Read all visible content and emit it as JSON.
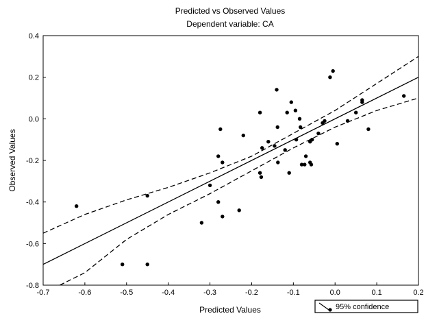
{
  "chart_data": {
    "type": "scatter",
    "title": "Predicted vs  Observed Values",
    "subtitle": "Dependent variable: CA",
    "xlabel": "Predicted Values",
    "ylabel": "Observed Values",
    "xlim": [
      -0.7,
      0.2
    ],
    "ylim": [
      -0.8,
      0.4
    ],
    "xticks": [
      "-0.7",
      "-0.6",
      "-0.5",
      "-0.4",
      "-0.3",
      "-0.2",
      "-0.1",
      "0.0",
      "0.1",
      "0.2"
    ],
    "xtick_values": [
      -0.7,
      -0.6,
      -0.5,
      -0.4,
      -0.3,
      -0.2,
      -0.1,
      0.0,
      0.1,
      0.2
    ],
    "yticks": [
      "0.4",
      "0.2",
      "0.0",
      "-0.2",
      "-0.4",
      "-0.6",
      "-0.8"
    ],
    "ytick_values": [
      0.4,
      0.2,
      0.0,
      -0.2,
      -0.4,
      -0.6,
      -0.8
    ],
    "grid": false,
    "legend": {
      "position": "bottom-right",
      "label": "95% confidence"
    },
    "points": [
      [
        -0.62,
        -0.42
      ],
      [
        -0.51,
        -0.7
      ],
      [
        -0.45,
        -0.37
      ],
      [
        -0.45,
        -0.7
      ],
      [
        -0.32,
        -0.5
      ],
      [
        -0.3,
        -0.32
      ],
      [
        -0.28,
        -0.18
      ],
      [
        -0.28,
        -0.4
      ],
      [
        -0.275,
        -0.05
      ],
      [
        -0.27,
        -0.21
      ],
      [
        -0.27,
        -0.47
      ],
      [
        -0.23,
        -0.44
      ],
      [
        -0.22,
        -0.08
      ],
      [
        -0.18,
        0.03
      ],
      [
        -0.18,
        -0.26
      ],
      [
        -0.177,
        -0.28
      ],
      [
        -0.175,
        -0.14
      ],
      [
        -0.16,
        -0.11
      ],
      [
        -0.145,
        -0.13
      ],
      [
        -0.14,
        0.14
      ],
      [
        -0.138,
        -0.04
      ],
      [
        -0.137,
        -0.21
      ],
      [
        -0.12,
        -0.15
      ],
      [
        -0.115,
        0.03
      ],
      [
        -0.11,
        -0.26
      ],
      [
        -0.105,
        0.08
      ],
      [
        -0.095,
        0.04
      ],
      [
        -0.093,
        -0.1
      ],
      [
        -0.085,
        0.0
      ],
      [
        -0.083,
        -0.04
      ],
      [
        -0.08,
        -0.22
      ],
      [
        -0.073,
        -0.22
      ],
      [
        -0.07,
        -0.18
      ],
      [
        -0.06,
        -0.11
      ],
      [
        -0.06,
        -0.21
      ],
      [
        -0.057,
        -0.22
      ],
      [
        -0.055,
        -0.1
      ],
      [
        -0.04,
        -0.07
      ],
      [
        -0.03,
        -0.02
      ],
      [
        -0.025,
        -0.01
      ],
      [
        -0.012,
        0.2
      ],
      [
        -0.005,
        0.23
      ],
      [
        0.005,
        -0.12
      ],
      [
        0.03,
        -0.01
      ],
      [
        0.05,
        0.03
      ],
      [
        0.065,
        0.09
      ],
      [
        0.065,
        0.08
      ],
      [
        0.08,
        -0.05
      ],
      [
        0.165,
        0.11
      ]
    ],
    "series": [
      {
        "type": "line",
        "style": "solid",
        "x": [
          -0.7,
          0.2
        ],
        "y": [
          -0.7,
          0.2
        ]
      },
      {
        "type": "line",
        "style": "dashed",
        "x": [
          -0.7,
          -0.6,
          -0.5,
          -0.4,
          -0.3,
          -0.2,
          -0.1,
          0.0,
          0.1,
          0.2
        ],
        "y": [
          -0.55,
          -0.46,
          -0.39,
          -0.33,
          -0.26,
          -0.18,
          -0.07,
          0.04,
          0.17,
          0.3
        ]
      },
      {
        "type": "line",
        "style": "dashed",
        "x": [
          -0.66,
          -0.6,
          -0.5,
          -0.4,
          -0.3,
          -0.2,
          -0.1,
          0.0,
          0.1,
          0.2
        ],
        "y": [
          -0.8,
          -0.74,
          -0.58,
          -0.46,
          -0.36,
          -0.25,
          -0.14,
          -0.04,
          0.04,
          0.1
        ]
      }
    ]
  }
}
